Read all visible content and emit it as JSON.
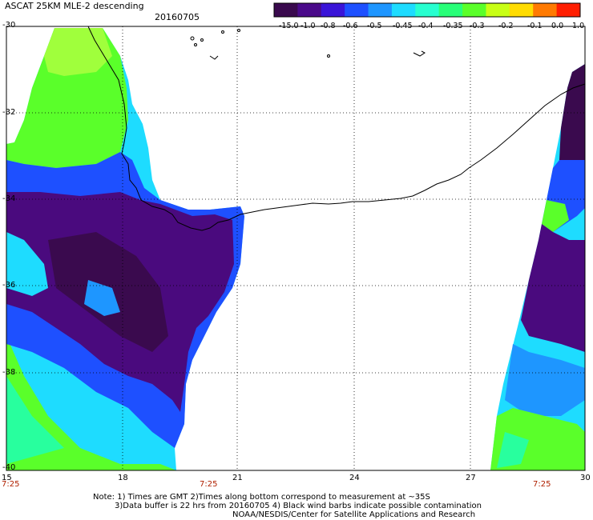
{
  "header": {
    "title": "ASCAT 25KM MLE-2 descending",
    "date": "20160705"
  },
  "colorbar": {
    "labels": [
      "-15.0",
      "-1.0",
      "-0.8",
      "-0.6",
      "-0.5",
      "-0.45",
      "-0.4",
      "-0.35",
      "-0.3",
      "-0.2",
      "-0.1",
      "0.0",
      "1.0"
    ],
    "colors": [
      "#3a0a4e",
      "#4a0a8a",
      "#3a14d8",
      "#1e50ff",
      "#1e96ff",
      "#1edcff",
      "#28ffd0",
      "#28ff78",
      "#5aff2a",
      "#c8ff14",
      "#ffdc00",
      "#ff7a00",
      "#ff1e00"
    ]
  },
  "axes": {
    "y_labels": [
      "-30",
      "-32",
      "-34",
      "-36",
      "-38",
      "-40"
    ],
    "x_labels": [
      "15",
      "18",
      "21",
      "24",
      "27",
      "30"
    ],
    "time_labels": [
      "7:25",
      "7:25",
      "7:25"
    ]
  },
  "footer": {
    "line1": "Note: 1) Times are GMT 2)Times along bottom correspond to measurement at ~35S",
    "line2": "3)Data buffer is 22 hrs from 20160705 4) Black wind barbs indicate possible contamination",
    "line3": "NOAA/NESDIS/Center for Satellite Applications and Research"
  }
}
